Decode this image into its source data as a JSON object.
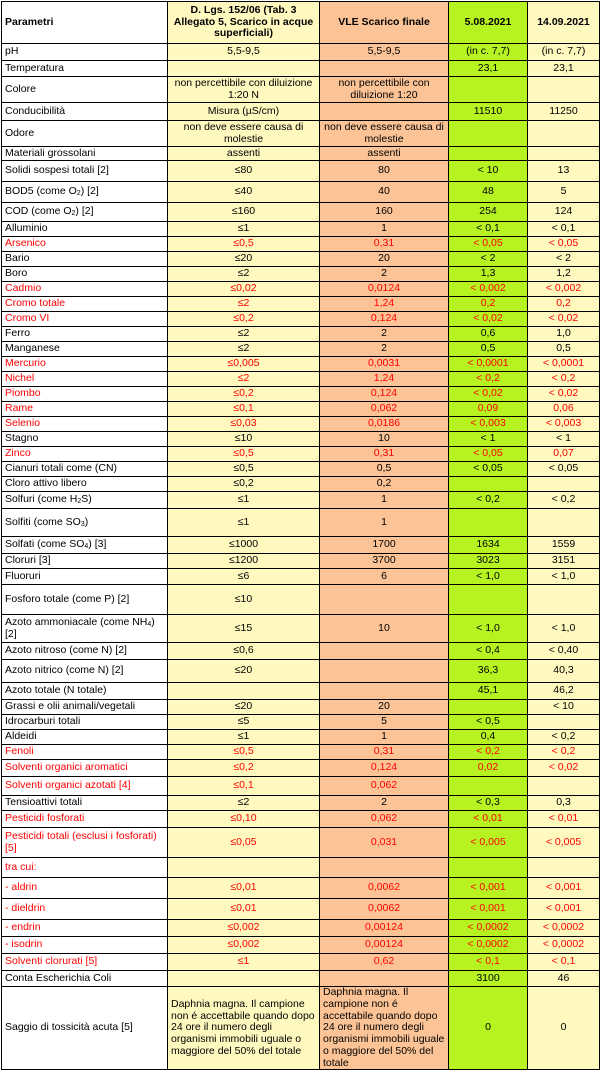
{
  "header": {
    "param": "Parametri",
    "law": "D. Lgs. 152/06 (Tab. 3 Allegato 5, Scarico in acque superficiali)",
    "vle": "VLE Scarico finale",
    "m1": "5.08.2021",
    "m2": "14.09.2021"
  },
  "colors": {
    "law_bg": "#fff8bf",
    "vle_bg": "#fcc496",
    "m1_bg": "#b7f221",
    "m2_bg": "#fff8bf",
    "highlight_text": "#ff0000"
  },
  "rows": [
    {
      "param": "pH",
      "law": "5,5-9,5",
      "vle": "5,5-9,5",
      "m1": "(in c. 7,7)",
      "m2": "(in c. 7,7)",
      "red": false,
      "h": 17
    },
    {
      "param": "Temperatura",
      "law": "",
      "vle": "",
      "m1": "23,1",
      "m2": "23,1",
      "red": false,
      "h": 16
    },
    {
      "param": "Colore",
      "law": "non percettibile con diluizione 1:20 N",
      "vle": "non percettibile con diluizione 1:20",
      "m1": "",
      "m2": "",
      "red": false,
      "h": 26
    },
    {
      "param": "Conducibilità",
      "law": "Misura (µS/cm)",
      "vle": "",
      "m1": "11510",
      "m2": "11250",
      "red": false,
      "h": 18
    },
    {
      "param": "Odore",
      "law": "non deve essere causa di molestie",
      "vle": "non deve essere causa di molestie",
      "m1": "",
      "m2": "",
      "red": false,
      "h": 26
    },
    {
      "param": "Materiali grossolani",
      "law": "assenti",
      "vle": "assenti",
      "m1": "",
      "m2": "",
      "red": false,
      "h": 14
    },
    {
      "param": "Solidi sospesi totali [2]",
      "law": "≤80",
      "vle": "80",
      "m1": "< 10",
      "m2": "13",
      "red": false,
      "h": 21
    },
    {
      "param": "BOD5 (come O|2|) [2]",
      "law": "≤40",
      "vle": "40",
      "m1": "48",
      "m2": "5",
      "red": false,
      "h": 21
    },
    {
      "param": "COD (come O|2|) [2]",
      "law": "≤160",
      "vle": "160",
      "m1": "254",
      "m2": "124",
      "red": false,
      "h": 19
    },
    {
      "param": "Alluminio",
      "law": "≤1",
      "vle": "1",
      "m1": "< 0,1",
      "m2": "< 0,1",
      "red": false,
      "h": 15
    },
    {
      "param": "Arsenico",
      "law": "≤0,5",
      "vle": "0,31",
      "m1": "< 0,05",
      "m2": "< 0,05",
      "red": true,
      "h": 15
    },
    {
      "param": "Bario",
      "law": "≤20",
      "vle": "20",
      "m1": "< 2",
      "m2": "< 2",
      "red": false,
      "h": 15
    },
    {
      "param": "Boro",
      "law": "≤2",
      "vle": "2",
      "m1": "1,3",
      "m2": "1,2",
      "red": false,
      "h": 15
    },
    {
      "param": "Cadmio",
      "law": "≤0,02",
      "vle": "0,0124",
      "m1": "< 0,002",
      "m2": "< 0,002",
      "red": true,
      "h": 15
    },
    {
      "param": "Cromo totale",
      "law": "≤2",
      "vle": "1,24",
      "m1": "0,2",
      "m2": "0,2",
      "red": true,
      "h": 15
    },
    {
      "param": "Cromo VI",
      "law": "≤0,2",
      "vle": "0,124",
      "m1": "< 0,02",
      "m2": "< 0,02",
      "red": true,
      "h": 15
    },
    {
      "param": "Ferro",
      "law": "≤2",
      "vle": "2",
      "m1": "0,6",
      "m2": "1,0",
      "red": false,
      "h": 15
    },
    {
      "param": "Manganese",
      "law": "≤2",
      "vle": "2",
      "m1": "0,5",
      "m2": "0,5",
      "red": false,
      "h": 15
    },
    {
      "param": "Mercurio",
      "law": "≤0,005",
      "vle": "0,0031",
      "m1": "< 0,0001",
      "m2": "< 0,0001",
      "red": true,
      "h": 15
    },
    {
      "param": "Nichel",
      "law": "≤2",
      "vle": "1,24",
      "m1": "< 0,2",
      "m2": "< 0,2",
      "red": true,
      "h": 15
    },
    {
      "param": "Piombo",
      "law": "≤0,2",
      "vle": "0,124",
      "m1": "< 0,02",
      "m2": "< 0,02",
      "red": true,
      "h": 15
    },
    {
      "param": "Rame",
      "law": "≤0,1",
      "vle": "0,062",
      "m1": "0,09",
      "m2": "0,06",
      "red": true,
      "h": 15
    },
    {
      "param": "Selenio",
      "law": "≤0,03",
      "vle": "0,0186",
      "m1": "< 0,003",
      "m2": "< 0,003",
      "red": true,
      "h": 15
    },
    {
      "param": "Stagno",
      "law": "≤10",
      "vle": "10",
      "m1": "< 1",
      "m2": "< 1",
      "red": false,
      "h": 15
    },
    {
      "param": "Zinco",
      "law": "≤0,5",
      "vle": "0,31",
      "m1": "< 0,05",
      "m2": "0,07",
      "red": true,
      "h": 15
    },
    {
      "param": "Cianuri totali come (CN)",
      "law": "≤0,5",
      "vle": "0,5",
      "m1": "< 0,05",
      "m2": "< 0,05",
      "red": false,
      "h": 15
    },
    {
      "param": "Cloro attivo libero",
      "law": "≤0,2",
      "vle": "0,2",
      "m1": "",
      "m2": "",
      "red": false,
      "h": 15
    },
    {
      "param": "Solfuri (come H|2|S)",
      "law": "≤1",
      "vle": "1",
      "m1": "< 0,2",
      "m2": "< 0,2",
      "red": false,
      "h": 17
    },
    {
      "param": "Solfiti (come SO|3|)",
      "law": "≤1",
      "vle": "1",
      "m1": "",
      "m2": "",
      "red": false,
      "h": 28
    },
    {
      "param": "Solfati (come SO|4|) [3]",
      "law": "≤1000",
      "vle": "1700",
      "m1": "1634",
      "m2": "1559",
      "red": false,
      "h": 17
    },
    {
      "param": "Cloruri [3]",
      "law": "≤1200",
      "vle": "3700",
      "m1": "3023",
      "m2": "3151",
      "red": false,
      "h": 15
    },
    {
      "param": "Fluoruri",
      "law": "≤6",
      "vle": "6",
      "m1": "< 1,0",
      "m2": "< 1,0",
      "red": false,
      "h": 16
    },
    {
      "param": "Fosforo totale (come P) [2]",
      "law": "≤10",
      "vle": "",
      "m1": "",
      "m2": "",
      "red": false,
      "h": 30
    },
    {
      "param": "Azoto ammoniacale (come NH|4|) [2]",
      "law": "≤15",
      "vle": "10",
      "m1": "< 1,0",
      "m2": "< 1,0",
      "red": false,
      "h": 28
    },
    {
      "param": "Azoto nitroso (come N) [2]",
      "law": "≤0,6",
      "vle": "",
      "m1": "< 0,4",
      "m2": "< 0,40",
      "red": false,
      "h": 17
    },
    {
      "param": "Azoto nitrico (come N) [2]",
      "law": "≤20",
      "vle": "",
      "m1": "36,3",
      "m2": "40,3",
      "red": false,
      "h": 23
    },
    {
      "param": "Azoto totale (N totale)",
      "law": "",
      "vle": "",
      "m1": "45,1",
      "m2": "46,2",
      "red": false,
      "h": 17
    },
    {
      "param": "Grassi e olii animali/vegetali",
      "law": "≤20",
      "vle": "20",
      "m1": "",
      "m2": "< 10",
      "red": false,
      "h": 15
    },
    {
      "param": "Idrocarburi totali",
      "law": "≤5",
      "vle": "5",
      "m1": "< 0,5",
      "m2": "",
      "red": false,
      "h": 15
    },
    {
      "param": "Aldeidi",
      "law": "≤1",
      "vle": "1",
      "m1": "0,4",
      "m2": "< 0,2",
      "red": false,
      "h": 15
    },
    {
      "param": "Fenoli",
      "law": "≤0,5",
      "vle": "0,31",
      "m1": "< 0,2",
      "m2": "< 0,2",
      "red": true,
      "h": 15
    },
    {
      "param": "Solventi organici aromatici",
      "law": "≤0,2",
      "vle": "0,124",
      "m1": "0,02",
      "m2": "< 0,02",
      "red": true,
      "h": 17
    },
    {
      "param": "Solventi organici azotati [4]",
      "law": "≤0,1",
      "vle": "0,062",
      "m1": "",
      "m2": "",
      "red": true,
      "h": 19
    },
    {
      "param": "Tensioattivi totali",
      "law": "≤2",
      "vle": "2",
      "m1": "< 0,3",
      "m2": "0,3",
      "red": false,
      "h": 15
    },
    {
      "param": "Pesticidi fosforati",
      "law": "≤0,10",
      "vle": "0,062",
      "m1": "< 0,01",
      "m2": "< 0,01",
      "red": true,
      "h": 17
    },
    {
      "param": "Pesticidi totali (esclusi i fosforati) [5]",
      "law": "≤0,05",
      "vle": "0,031",
      "m1": "< 0,005",
      "m2": "< 0,005",
      "red": true,
      "h": 30
    },
    {
      "param": "tra cui:",
      "law": "",
      "vle": "",
      "m1": "",
      "m2": "",
      "red": true,
      "h": 20
    },
    {
      "param": "- aldrin",
      "law": "≤0,01",
      "vle": "0,0062",
      "m1": "< 0,001",
      "m2": "< 0,001",
      "red": true,
      "h": 21
    },
    {
      "param": "- dieldrin",
      "law": "≤0,01",
      "vle": "0,0062",
      "m1": "< 0,001",
      "m2": "< 0,001",
      "red": true,
      "h": 21
    },
    {
      "param": "- endrin",
      "law": "≤0,002",
      "vle": "0,00124",
      "m1": "< 0,0002",
      "m2": "< 0,0002",
      "red": true,
      "h": 17
    },
    {
      "param": "- isodrin",
      "law": "≤0,002",
      "vle": "0,00124",
      "m1": "< 0,0002",
      "m2": "< 0,0002",
      "red": true,
      "h": 17
    },
    {
      "param": "Solventi clorurati [5]",
      "law": "≤1",
      "vle": "0,62",
      "m1": "< 0,1",
      "m2": "< 0,1",
      "red": true,
      "h": 17
    },
    {
      "param": "Conta Escherichia Coli",
      "law": "",
      "vle": "",
      "m1": "3100",
      "m2": "46",
      "red": false,
      "h": 16
    },
    {
      "param": "Saggio di tossicità acuta [5]",
      "law": "Daphnia magna. Il campione non é accettabile quando dopo 24 ore il numero degli organismi immobili uguale o maggiore del 50% del totale",
      "vle": "Daphnia magna. Il campione non é accettabile quando dopo 24 ore il numero degli organismi immobili uguale o maggiore del 50% del totale",
      "m1": "0",
      "m2": "0",
      "red": false,
      "h": 80
    }
  ]
}
